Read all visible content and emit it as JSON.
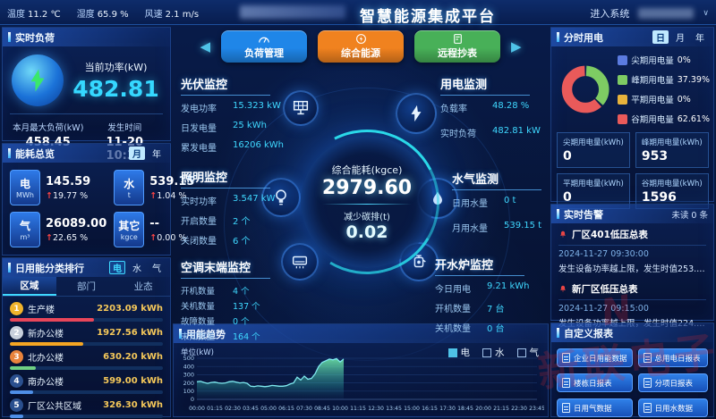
{
  "header": {
    "temp_label": "温度",
    "temp_value": "11.2 ℃",
    "hum_label": "湿度",
    "hum_value": "65.9 %",
    "wind_label": "风速",
    "wind_value": "2.1 m/s",
    "title": "智慧能源集成平台",
    "enter_system": "进入系统"
  },
  "icons": {
    "nav_left": "◀",
    "nav_right": "▶",
    "caret_down": "∨",
    "up_arrow": "↑"
  },
  "realtime_load": {
    "title": "实时负荷",
    "current_power_label": "当前功率(kW)",
    "current_power": "482.81",
    "max_load_label": "本月最大负荷(kW)",
    "max_load": "458.45",
    "occur_time_label": "发生时间",
    "occur_time": "11-20 10:30"
  },
  "energy_overview": {
    "title": "能耗总览",
    "toggle": {
      "options": [
        "月",
        "年"
      ],
      "active": 0
    },
    "items": [
      {
        "name": "电",
        "unit": "MWh",
        "value": "145.59",
        "delta": "19.77 %"
      },
      {
        "name": "水",
        "unit": "t",
        "value": "539.15",
        "delta": "1.04 %"
      },
      {
        "name": "气",
        "unit": "m³",
        "value": "26089.00",
        "delta": "22.65 %"
      },
      {
        "name": "其它",
        "unit": "kgce",
        "value": "--",
        "delta": "0.00 %"
      }
    ]
  },
  "daily_rank": {
    "title": "日用能分类排行",
    "type_tabs": {
      "options": [
        "电",
        "水",
        "气"
      ],
      "active": 0
    },
    "sub_tabs": {
      "options": [
        "区域",
        "部门",
        "业态"
      ],
      "active": 0
    },
    "items": [
      {
        "rank": "1",
        "name": "生产楼",
        "value": "2203.09 kWh",
        "pct": 55,
        "bar_color": "#e8465a",
        "medal_color": "#f0b42c"
      },
      {
        "rank": "2",
        "name": "新办公楼",
        "value": "1927.56 kWh",
        "pct": 48,
        "bar_color": "#f5a623",
        "medal_color": "#c8d0dc"
      },
      {
        "rank": "3",
        "name": "北办公楼",
        "value": "630.20 kWh",
        "pct": 17,
        "bar_color": "#6fd083",
        "medal_color": "#e8833c"
      },
      {
        "rank": "4",
        "name": "南办公楼",
        "value": "599.00 kWh",
        "pct": 15,
        "bar_color": "#4f8fe8",
        "medal_color": "#2a4f8e"
      },
      {
        "rank": "5",
        "name": "厂区公共区域",
        "value": "326.30 kWh",
        "pct": 9,
        "bar_color": "#4f8fe8",
        "medal_color": "#2a4f8e"
      }
    ]
  },
  "nav_buttons": [
    {
      "label": "负荷管理",
      "color": "#1f86e8"
    },
    {
      "label": "综合能源",
      "color": "#f0821f"
    },
    {
      "label": "远程抄表",
      "color": "#48b058"
    }
  ],
  "monitors": {
    "pv": {
      "title": "光伏监控",
      "rows": [
        [
          "发电功率",
          "15.323 kW"
        ],
        [
          "日发电量",
          "25 kWh"
        ],
        [
          "累发电量",
          "16206 kWh"
        ]
      ]
    },
    "power": {
      "title": "用电监测",
      "rows": [
        [
          "负载率",
          "48.28 %"
        ],
        [
          "实时负荷",
          "482.81 kW"
        ]
      ]
    },
    "lighting": {
      "title": "照明监控",
      "rows": [
        [
          "实时功率",
          "3.547 kW"
        ],
        [
          "开启数量",
          "2 个"
        ],
        [
          "关闭数量",
          "6 个"
        ]
      ]
    },
    "watergas": {
      "title": "水气监测",
      "rows": [
        [
          "日用水量",
          "0 t"
        ],
        [
          "月用水量",
          "539.15 t"
        ]
      ]
    },
    "ac": {
      "title": "空调末端监控",
      "rows": [
        [
          "开机数量",
          "4 个"
        ],
        [
          "关机数量",
          "137 个"
        ],
        [
          "故障数量",
          "0 个"
        ],
        [
          "未知数量",
          "164 个"
        ]
      ]
    },
    "boiler": {
      "title": "开水炉监控",
      "rows": [
        [
          "今日用电",
          "9.21 kWh"
        ],
        [
          "开机数量",
          "7 台"
        ],
        [
          "关机数量",
          "0 台"
        ]
      ]
    }
  },
  "center_gauge": {
    "energy_label": "综合能耗(kgce)",
    "energy_value": "2979.60",
    "carbon_label": "减少碳排(t)",
    "carbon_value": "0.02"
  },
  "tou": {
    "title": "分时用电",
    "toggle": {
      "options": [
        "日",
        "月",
        "年"
      ],
      "active": 0
    },
    "stats": [
      {
        "label": "尖期用电量(kWh)",
        "value": "0"
      },
      {
        "label": "峰期用电量(kWh)",
        "value": "953"
      },
      {
        "label": "平期用电量(kWh)",
        "value": "0"
      },
      {
        "label": "谷期用电量(kWh)",
        "value": "1596"
      }
    ]
  },
  "alarms": {
    "title": "实时告警",
    "unread": "未读 0 条",
    "items": [
      {
        "name": "厂区401低压总表",
        "time": "2024-11-27 09:30:00",
        "desc": "发生设备功率越上限，发生时值253.2kW，..."
      },
      {
        "name": "新厂区低压总表",
        "time": "2024-11-27 09:15:00",
        "desc": "发生设备功率越上限，发生时值224.94kW..."
      }
    ]
  },
  "reports": {
    "title": "自定义报表",
    "buttons": [
      "企业日用能数据",
      "总用电日报表",
      "楼栋日报表",
      "分项日报表",
      "日用气数据",
      "日用水数据"
    ]
  },
  "watermark": {
    "text": "新联电子",
    "mark": "N"
  },
  "chart_data": [
    {
      "type": "pie",
      "title": "分时用电",
      "legend_position": "right",
      "slices": [
        {
          "label": "尖期用电量",
          "pct": 0,
          "pct_label": "0%",
          "color": "#5b7be0"
        },
        {
          "label": "峰期用电量",
          "pct": 37.39,
          "pct_label": "37.39%",
          "color": "#7ecb63"
        },
        {
          "label": "平期用电量",
          "pct": 0,
          "pct_label": "0%",
          "color": "#e8b33c"
        },
        {
          "label": "谷期用电量",
          "pct": 62.61,
          "pct_label": "62.61%",
          "color": "#e95a5a"
        }
      ]
    },
    {
      "type": "area",
      "title": "用能趋势",
      "ylabel": "单位(kW)",
      "ylim": [
        0,
        500
      ],
      "yticks": [
        0,
        100,
        200,
        300,
        400,
        500
      ],
      "xticks": [
        "00:00",
        "01:15",
        "02:30",
        "03:45",
        "05:00",
        "06:15",
        "07:30",
        "08:45",
        "10:00",
        "11:15",
        "12:30",
        "13:45",
        "15:00",
        "16:15",
        "17:30",
        "18:45",
        "20:00",
        "21:15",
        "22:30",
        "23:45"
      ],
      "x_total_minutes": 1425,
      "interval_minutes": 15,
      "legend": [
        {
          "label": "电",
          "checked": true,
          "color": "#4fc3e8"
        },
        {
          "label": "水",
          "checked": false,
          "color": ""
        },
        {
          "label": "气",
          "checked": false,
          "color": ""
        }
      ],
      "series": [
        {
          "name": "电",
          "color": "#7ee8ee",
          "values": [
            215,
            220,
            205,
            195,
            205,
            210,
            200,
            196,
            200,
            214,
            220,
            210,
            200,
            205,
            196,
            160,
            155,
            164,
            160,
            154,
            160,
            170,
            165,
            160,
            160,
            166,
            186,
            200,
            270,
            235,
            283,
            245,
            255,
            310,
            400,
            450,
            470,
            490,
            480,
            496,
            455,
            490
          ]
        }
      ]
    }
  ]
}
